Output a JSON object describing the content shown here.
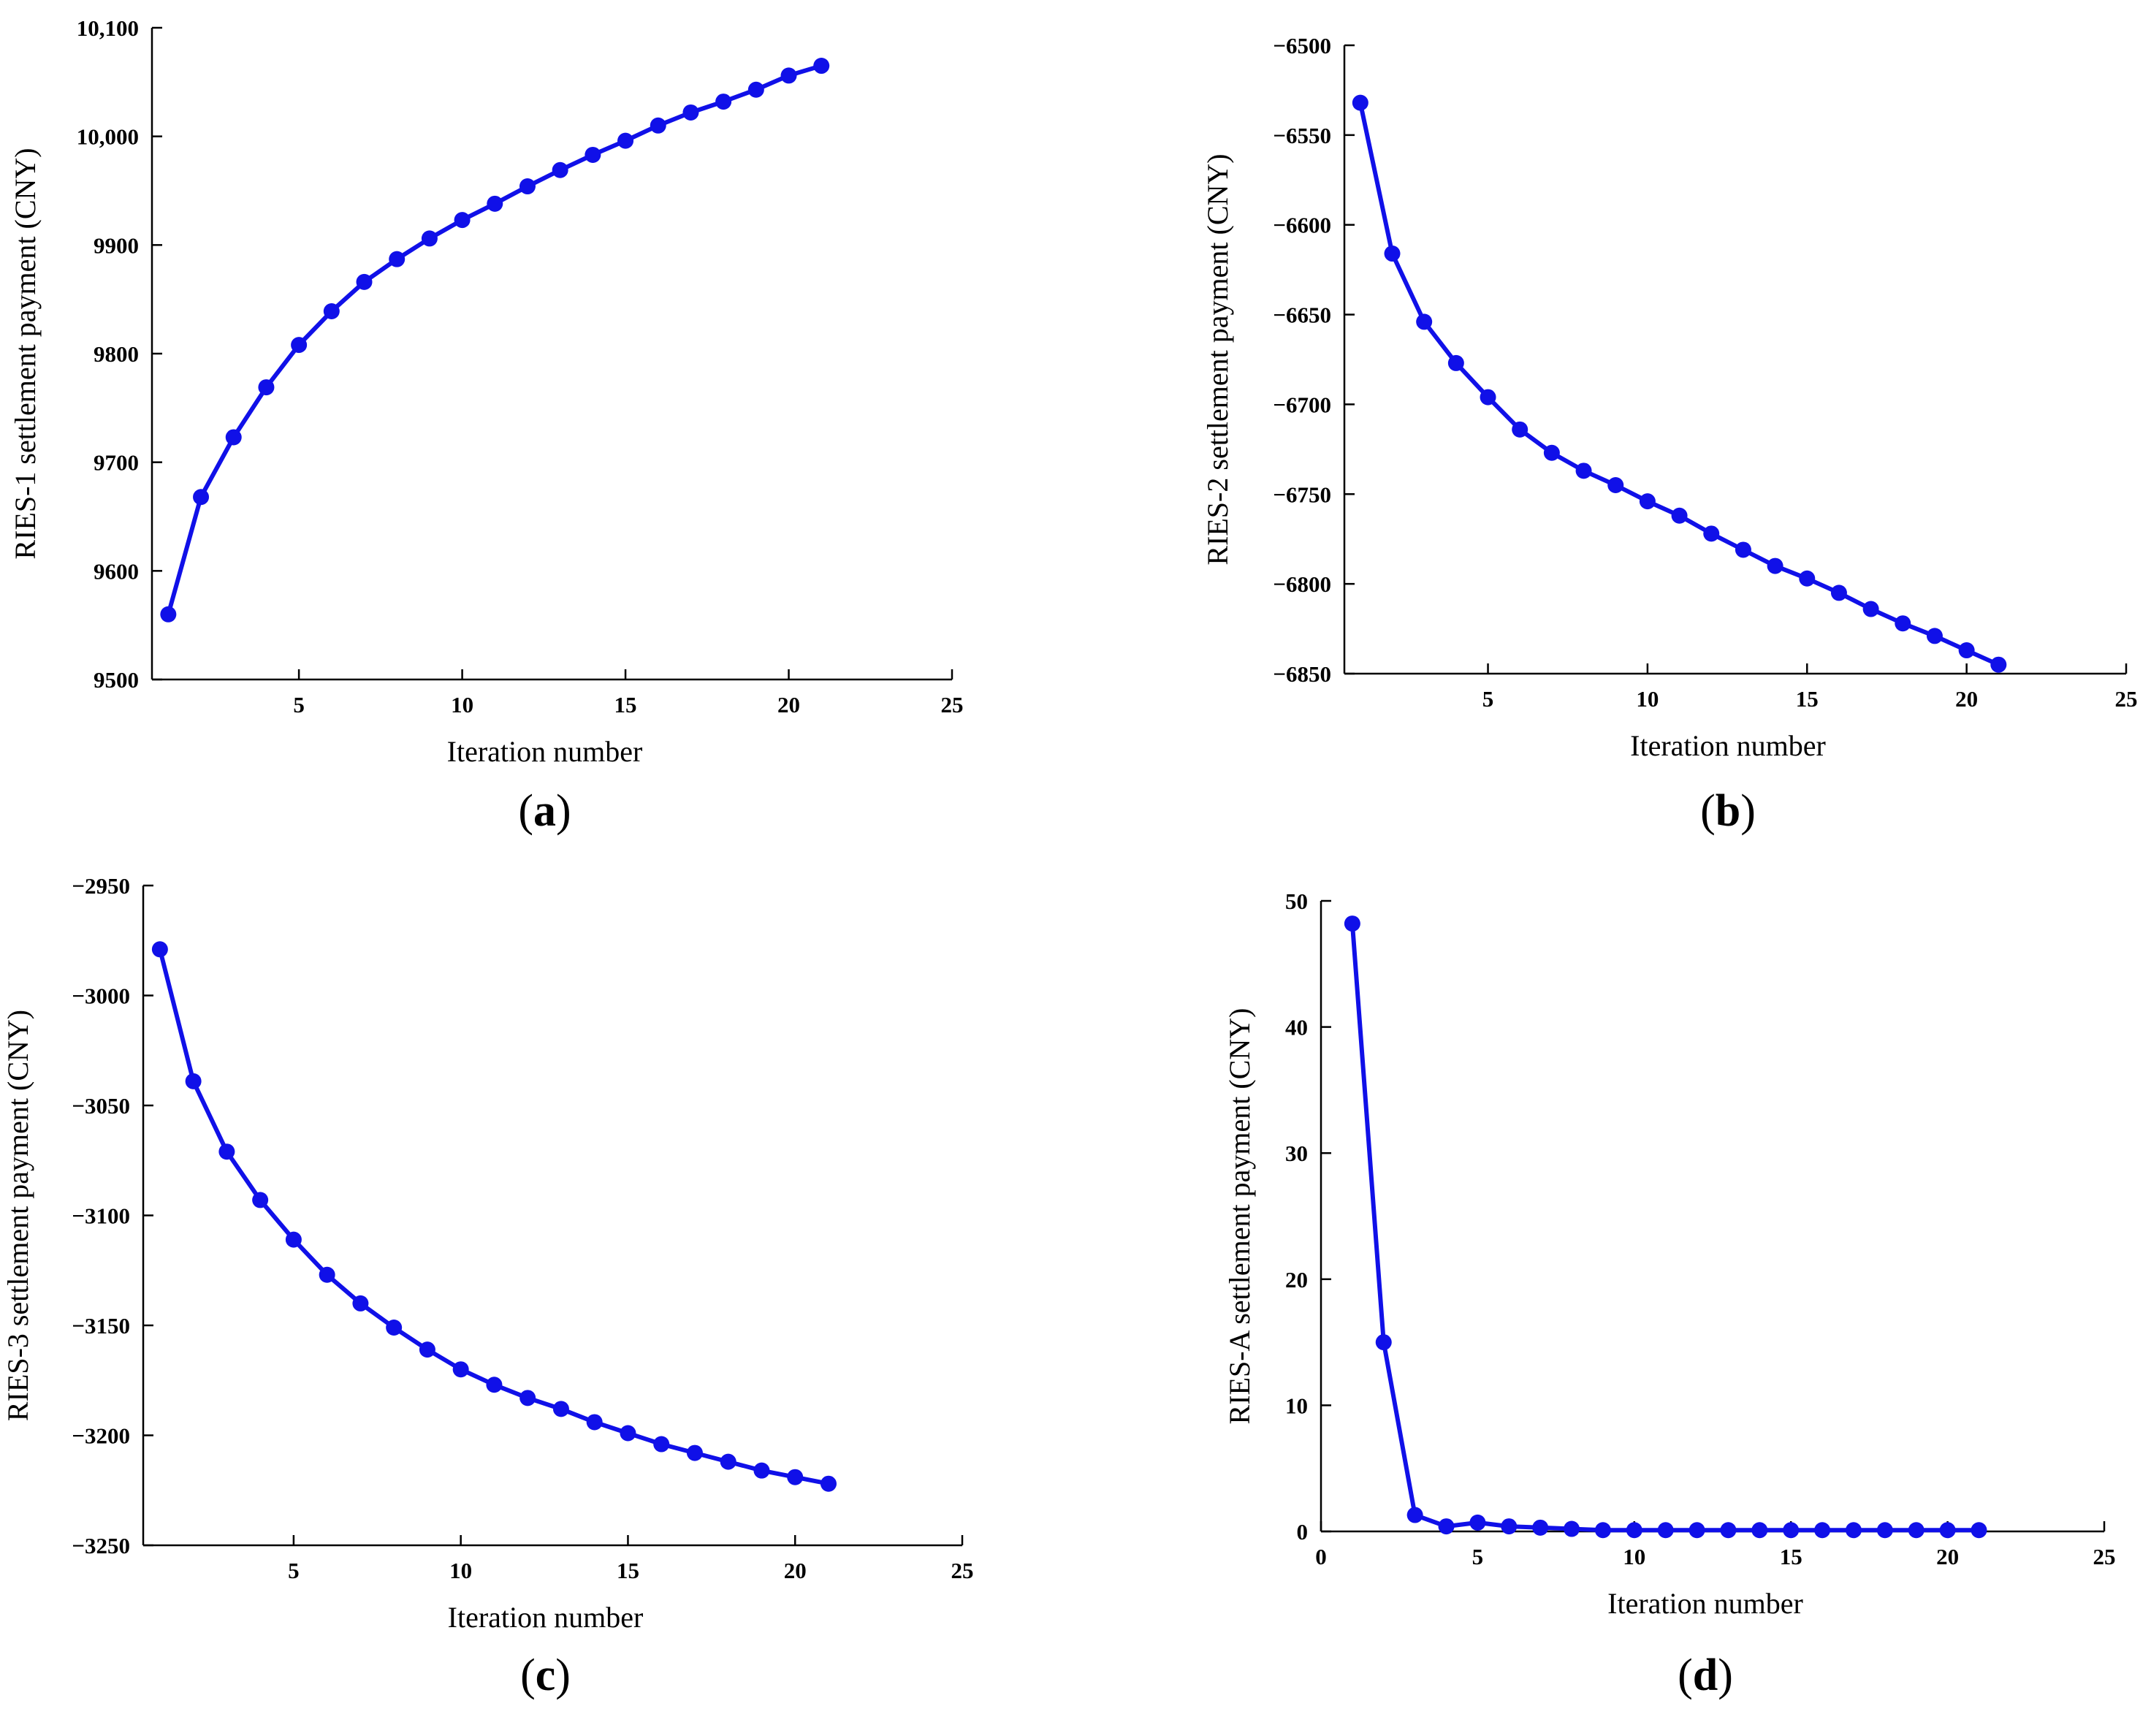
{
  "chart_data": [
    {
      "type": "line",
      "panel_label": "a",
      "xlabel": "Iteration number",
      "ylabel": "RIES-1 settlement payment (CNY)",
      "xlim": [
        0.5,
        25
      ],
      "ylim": [
        9500,
        10100
      ],
      "xticks": [
        5,
        10,
        15,
        20,
        25
      ],
      "yticks": [
        9500,
        9600,
        9700,
        9800,
        9900,
        10000,
        10100
      ],
      "ytick_labels": [
        "9500",
        "9600",
        "9700",
        "9800",
        "9900",
        "10,000",
        "10,100"
      ],
      "series_color": "#1010e8",
      "x": [
        1,
        2,
        3,
        4,
        5,
        6,
        7,
        8,
        9,
        10,
        11,
        12,
        13,
        14,
        15,
        16,
        17,
        18,
        19,
        20,
        21
      ],
      "y": [
        9560,
        9668,
        9723,
        9769,
        9808,
        9839,
        9866,
        9887,
        9906,
        9923,
        9938,
        9954,
        9969,
        9983,
        9996,
        10010,
        10022,
        10032,
        10043,
        10056,
        10065
      ]
    },
    {
      "type": "line",
      "panel_label": "b",
      "xlabel": "Iteration number",
      "ylabel": "RIES-2 settlement payment (CNY)",
      "xlim": [
        0.5,
        25
      ],
      "ylim": [
        -6850,
        -6500
      ],
      "xticks": [
        5,
        10,
        15,
        20,
        25
      ],
      "yticks": [
        -6500,
        -6550,
        -6600,
        -6650,
        -6700,
        -6750,
        -6800,
        -6850
      ],
      "ytick_labels": [
        "−6500",
        "−6550",
        "−6600",
        "−6650",
        "−6700",
        "−6750",
        "−6800",
        "−6850"
      ],
      "series_color": "#1010e8",
      "x": [
        1,
        2,
        3,
        4,
        5,
        6,
        7,
        8,
        9,
        10,
        11,
        12,
        13,
        14,
        15,
        16,
        17,
        18,
        19,
        20,
        21
      ],
      "y": [
        -6532,
        -6616,
        -6654,
        -6677,
        -6696,
        -6714,
        -6727,
        -6737,
        -6745,
        -6754,
        -6762,
        -6772,
        -6781,
        -6790,
        -6797,
        -6805,
        -6814,
        -6822,
        -6829,
        -6837,
        -6845
      ]
    },
    {
      "type": "line",
      "panel_label": "c",
      "xlabel": "Iteration number",
      "ylabel": "RIES-3 settlement payment (CNY)",
      "xlim": [
        0.5,
        25
      ],
      "ylim": [
        -3250,
        -2950
      ],
      "xticks": [
        5,
        10,
        15,
        20,
        25
      ],
      "yticks": [
        -2950,
        -3000,
        -3050,
        -3100,
        -3150,
        -3200,
        -3250
      ],
      "ytick_labels": [
        "−2950",
        "−3000",
        "−3050",
        "−3100",
        "−3150",
        "−3200",
        "−3250"
      ],
      "series_color": "#1010e8",
      "x": [
        1,
        2,
        3,
        4,
        5,
        6,
        7,
        8,
        9,
        10,
        11,
        12,
        13,
        14,
        15,
        16,
        17,
        18,
        19,
        20,
        21
      ],
      "y": [
        -2979,
        -3039,
        -3071,
        -3093,
        -3111,
        -3127,
        -3140,
        -3151,
        -3161,
        -3170,
        -3177,
        -3183,
        -3188,
        -3194,
        -3199,
        -3204,
        -3208,
        -3212,
        -3216,
        -3219,
        -3222
      ]
    },
    {
      "type": "line",
      "panel_label": "d",
      "xlabel": "Iteration number",
      "ylabel": "RIES-A settlement payment (CNY)",
      "xlim": [
        0,
        25
      ],
      "ylim": [
        0,
        50
      ],
      "xticks": [
        0,
        5,
        10,
        15,
        20,
        25
      ],
      "yticks": [
        0,
        10,
        20,
        30,
        40,
        50
      ],
      "series_color": "#1010e8",
      "x": [
        1,
        2,
        3,
        4,
        5,
        6,
        7,
        8,
        9,
        10,
        11,
        12,
        13,
        14,
        15,
        16,
        17,
        18,
        19,
        20,
        21
      ],
      "y": [
        48.2,
        15.0,
        1.3,
        0.4,
        0.7,
        0.4,
        0.3,
        0.2,
        0.1,
        0.1,
        0.1,
        0.1,
        0.1,
        0.1,
        0.1,
        0.1,
        0.1,
        0.1,
        0.1,
        0.1,
        0.1
      ]
    }
  ]
}
